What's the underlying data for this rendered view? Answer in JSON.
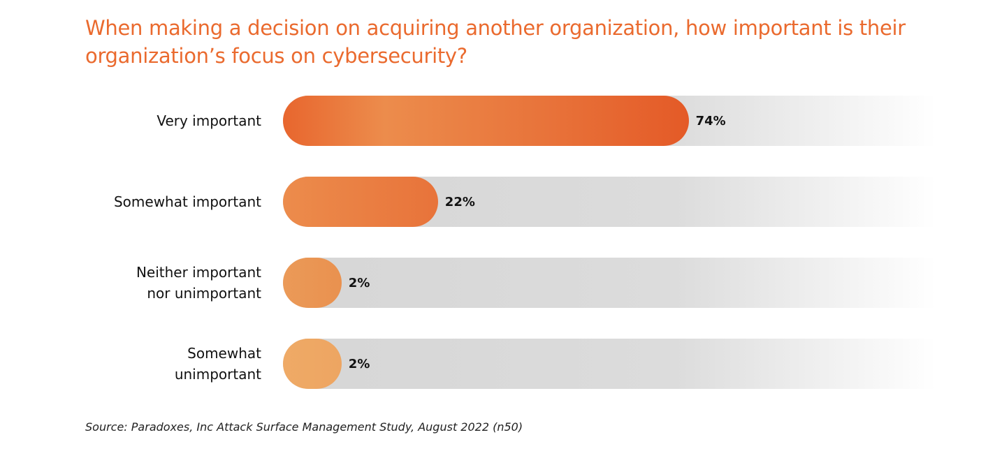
{
  "chart_data": {
    "type": "bar",
    "orientation": "horizontal",
    "title": "When making a decision on acquiring another organization, how important is their organization’s focus on cybersecurity?",
    "categories": [
      "Very important",
      "Somewhat important",
      "Neither important\nnor unimportant",
      "Somewhat\nunimportant"
    ],
    "values": [
      74,
      22,
      2,
      2
    ],
    "data_labels": [
      "74%",
      "22%",
      "2%",
      "2%"
    ],
    "unit": "%",
    "xlim": [
      0,
      100
    ],
    "grid": false,
    "colors": {
      "title": "#ea6a2e",
      "bar_strong": "#e55a28",
      "bar_light": "#eda562",
      "track": "#d9d9d9"
    },
    "source": "Source: Paradoxes, Inc Attack Surface Management Study, August 2022 (n50)"
  }
}
